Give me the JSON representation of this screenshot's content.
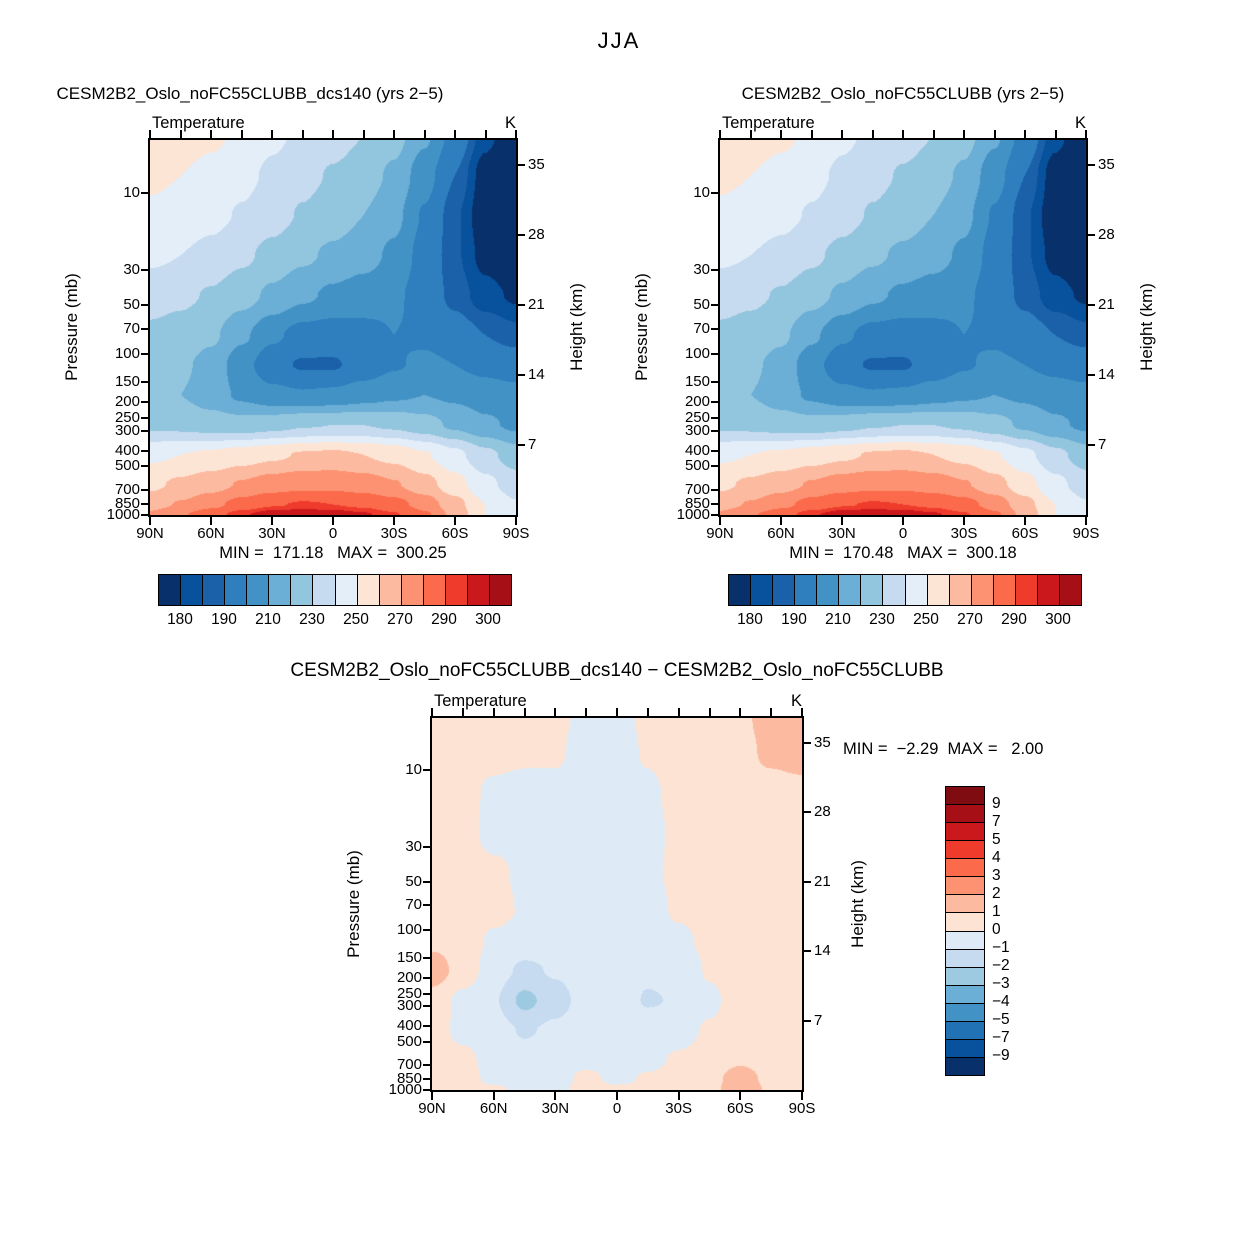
{
  "page_title": "JJA",
  "labels": {
    "field": "Temperature",
    "unit": "K",
    "pressure_axis": "Pressure (mb)",
    "height_axis": "Height (km)"
  },
  "panels": [
    {
      "title": "CESM2B2_Oslo_noFC55CLUBB_dcs140 (yrs 2−5)",
      "stats": "MIN =  171.18   MAX =  300.25",
      "colorbar_labels": [
        "180",
        "190",
        "210",
        "230",
        "250",
        "270",
        "290",
        "300"
      ]
    },
    {
      "title": "CESM2B2_Oslo_noFC55CLUBB (yrs 2−5)",
      "stats": "MIN =  170.48   MAX =  300.18",
      "colorbar_labels": [
        "180",
        "190",
        "210",
        "230",
        "250",
        "270",
        "290",
        "300"
      ]
    },
    {
      "title": "CESM2B2_Oslo_noFC55CLUBB_dcs140 − CESM2B2_Oslo_noFC55CLUBB",
      "stats": "MIN =  −2.29  MAX =   2.00",
      "colorbar_labels": [
        "9",
        "7",
        "5",
        "4",
        "3",
        "2",
        "1",
        "0",
        "−1",
        "−2",
        "−3",
        "−4",
        "−5",
        "−7",
        "−9"
      ]
    }
  ],
  "axes": {
    "pressure_ticks": [
      "10",
      "30",
      "50",
      "70",
      "100",
      "150",
      "200",
      "250",
      "300",
      "400",
      "500",
      "700",
      "850",
      "1000"
    ],
    "height_ticks": [
      "35",
      "28",
      "21",
      "14",
      "7"
    ],
    "lat_ticks": [
      "90N",
      "60N",
      "30N",
      "0",
      "30S",
      "60S",
      "90S"
    ],
    "z_top_km": 37.5,
    "scale_height_km": 7
  },
  "chart_data": {
    "type": "heatmap",
    "description": "Zonal-mean temperature (K) versus latitude and pressure for JJA; two CESM2 model runs and their difference (filled contour cross-sections).",
    "panels": [
      {
        "name": "CESM2B2_Oslo_noFC55CLUBB_dcs140 (yrs 2−5)",
        "units": "K",
        "min": 171.18,
        "max": 300.25,
        "lat_cols": [
          "90N",
          "75N",
          "60N",
          "45N",
          "30N",
          "15N",
          "0",
          "15S",
          "30S",
          "45S",
          "60S",
          "75S",
          "90S"
        ],
        "z_rows_km": [
          38,
          34,
          30,
          26,
          22,
          18,
          15,
          12,
          9,
          6,
          3,
          1,
          0
        ],
        "contour_edges": [
          180,
          185,
          190,
          200,
          210,
          220,
          230,
          240,
          250,
          260,
          270,
          280,
          290,
          295,
          300
        ],
        "band_colors": [
          "#08306b",
          "#08519c",
          "#1a61aa",
          "#2f7fbf",
          "#4292c6",
          "#6baed6",
          "#92c5de",
          "#c6dbef",
          "#e3eef9",
          "#fde5d6",
          "#fcbba1",
          "#fc9272",
          "#fb6a4a",
          "#ef3b2c",
          "#cb181d",
          "#a50f15"
        ],
        "values": [
          [
            256,
            255,
            252,
            248,
            242,
            238,
            234,
            230,
            224,
            212,
            196,
            182,
            174
          ],
          [
            252,
            250,
            247,
            243,
            238,
            233,
            229,
            225,
            218,
            204,
            190,
            177,
            171
          ],
          [
            248,
            246,
            243,
            239,
            234,
            229,
            225,
            220,
            213,
            199,
            186,
            176,
            171
          ],
          [
            242,
            240,
            237,
            232,
            227,
            222,
            218,
            214,
            208,
            196,
            186,
            178,
            174
          ],
          [
            234,
            232,
            229,
            224,
            218,
            212,
            208,
            205,
            202,
            195,
            188,
            182,
            179
          ],
          [
            228,
            226,
            222,
            212,
            202,
            196,
            195,
            197,
            200,
            198,
            194,
            190,
            187
          ],
          [
            225,
            222,
            216,
            204,
            193,
            189,
            189,
            194,
            199,
            202,
            200,
            197,
            195
          ],
          [
            222,
            220,
            215,
            208,
            203,
            201,
            202,
            205,
            208,
            210,
            208,
            205,
            203
          ],
          [
            228,
            227,
            225,
            224,
            226,
            229,
            230,
            230,
            228,
            224,
            218,
            212,
            208
          ],
          [
            248,
            250,
            252,
            255,
            258,
            261,
            262,
            260,
            257,
            251,
            243,
            233,
            225
          ],
          [
            258,
            262,
            266,
            271,
            275,
            277,
            277,
            275,
            271,
            264,
            254,
            243,
            235
          ],
          [
            266,
            271,
            277,
            284,
            289,
            291,
            290,
            288,
            284,
            276,
            264,
            250,
            241
          ],
          [
            272,
            279,
            286,
            294,
            299,
            300,
            299,
            296,
            291,
            282,
            267,
            250,
            243
          ]
        ]
      },
      {
        "name": "CESM2B2_Oslo_noFC55CLUBB (yrs 2−5)",
        "units": "K",
        "min": 170.48,
        "max": 300.18,
        "lat_cols": [
          "90N",
          "75N",
          "60N",
          "45N",
          "30N",
          "15N",
          "0",
          "15S",
          "30S",
          "45S",
          "60S",
          "75S",
          "90S"
        ],
        "z_rows_km": [
          38,
          34,
          30,
          26,
          22,
          18,
          15,
          12,
          9,
          6,
          3,
          1,
          0
        ],
        "contour_edges": [
          180,
          185,
          190,
          200,
          210,
          220,
          230,
          240,
          250,
          260,
          270,
          280,
          290,
          295,
          300
        ],
        "band_colors": [
          "#08306b",
          "#08519c",
          "#1a61aa",
          "#2f7fbf",
          "#4292c6",
          "#6baed6",
          "#92c5de",
          "#c6dbef",
          "#e3eef9",
          "#fde5d6",
          "#fcbba1",
          "#fc9272",
          "#fb6a4a",
          "#ef3b2c",
          "#cb181d",
          "#a50f15"
        ],
        "values": [
          [
            256,
            255,
            252,
            248,
            242,
            238,
            234,
            230,
            224,
            212,
            196,
            182,
            174
          ],
          [
            252,
            250,
            247,
            243,
            238,
            233,
            229,
            225,
            218,
            204,
            190,
            177,
            171
          ],
          [
            248,
            246,
            243,
            239,
            234,
            229,
            225,
            220,
            213,
            199,
            186,
            176,
            171
          ],
          [
            242,
            240,
            237,
            232,
            227,
            222,
            218,
            214,
            208,
            196,
            186,
            178,
            174
          ],
          [
            234,
            232,
            229,
            224,
            218,
            212,
            208,
            205,
            202,
            195,
            188,
            182,
            179
          ],
          [
            228,
            226,
            222,
            212,
            202,
            196,
            195,
            197,
            200,
            198,
            194,
            190,
            187
          ],
          [
            225,
            222,
            216,
            204,
            193,
            189,
            189,
            194,
            199,
            202,
            200,
            197,
            195
          ],
          [
            222,
            220,
            215,
            208,
            203,
            201,
            202,
            205,
            208,
            210,
            208,
            205,
            203
          ],
          [
            228,
            227,
            225,
            224,
            226,
            229,
            230,
            230,
            228,
            224,
            218,
            212,
            208
          ],
          [
            248,
            250,
            252,
            255,
            258,
            261,
            262,
            260,
            257,
            251,
            243,
            233,
            225
          ],
          [
            258,
            262,
            266,
            271,
            275,
            277,
            277,
            275,
            271,
            264,
            254,
            243,
            235
          ],
          [
            266,
            271,
            277,
            284,
            289,
            291,
            290,
            288,
            284,
            276,
            264,
            250,
            241
          ],
          [
            272,
            279,
            286,
            294,
            299,
            300,
            299,
            296,
            291,
            282,
            267,
            250,
            243
          ]
        ]
      },
      {
        "name": "CESM2B2_Oslo_noFC55CLUBB_dcs140 − CESM2B2_Oslo_noFC55CLUBB",
        "units": "K",
        "min": -2.29,
        "max": 2.0,
        "lat_cols": [
          "90N",
          "75N",
          "60N",
          "45N",
          "30N",
          "15N",
          "0",
          "15S",
          "30S",
          "45S",
          "60S",
          "75S",
          "90S"
        ],
        "z_rows_km": [
          38,
          34,
          30,
          26,
          22,
          18,
          15,
          12,
          9,
          6,
          3,
          1,
          0
        ],
        "contour_edges": [
          -9,
          -7,
          -5,
          -4,
          -3,
          -2,
          -1,
          0,
          1,
          2,
          3,
          4,
          5,
          7,
          9
        ],
        "band_colors": [
          "#08306b",
          "#08519c",
          "#2171b5",
          "#4292c6",
          "#6baed6",
          "#9ecae1",
          "#c6dbef",
          "#deebf7",
          "#fde3d3",
          "#fcbba1",
          "#fc9272",
          "#fb6a4a",
          "#ef3b2c",
          "#cb181d",
          "#a50f15",
          "#7f0c10"
        ],
        "values": [
          [
            0.4,
            0.4,
            0.3,
            0.3,
            0.2,
            -0.2,
            -0.3,
            0.2,
            0.4,
            0.5,
            0.8,
            1.4,
            1.6
          ],
          [
            0.4,
            0.3,
            0.3,
            0.2,
            0.1,
            -0.3,
            -0.4,
            0.1,
            0.4,
            0.5,
            0.7,
            1.2,
            1.4
          ],
          [
            0.3,
            0.3,
            -0.2,
            -0.4,
            -0.2,
            -0.3,
            -0.5,
            -0.2,
            0.3,
            0.4,
            0.5,
            0.6,
            0.7
          ],
          [
            0.4,
            0.3,
            -0.3,
            -0.5,
            -0.3,
            -0.4,
            -0.6,
            -0.3,
            0.2,
            0.4,
            0.4,
            0.5,
            0.5
          ],
          [
            0.5,
            0.4,
            0.2,
            -0.2,
            -0.4,
            -0.5,
            -0.4,
            -0.2,
            0.2,
            0.3,
            0.4,
            0.4,
            0.4
          ],
          [
            0.6,
            0.5,
            0.3,
            -0.1,
            -0.3,
            -0.4,
            -0.5,
            -0.3,
            0.1,
            0.3,
            0.3,
            0.3,
            0.3
          ],
          [
            0.8,
            0.6,
            -0.2,
            -0.5,
            -0.6,
            -0.4,
            -0.5,
            -0.4,
            -0.2,
            0.2,
            0.4,
            0.4,
            0.3
          ],
          [
            1.5,
            0.6,
            -0.6,
            -1.2,
            -0.9,
            -0.5,
            -0.6,
            -0.8,
            -0.7,
            0.1,
            0.5,
            0.5,
            0.4
          ],
          [
            0.6,
            -0.3,
            -0.9,
            -2.3,
            -1.4,
            -0.6,
            -0.4,
            -1.1,
            -0.9,
            -0.2,
            0.4,
            0.6,
            0.5
          ],
          [
            0.3,
            -0.2,
            -0.6,
            -1.1,
            -0.8,
            -0.4,
            -0.3,
            -0.4,
            -0.3,
            0.1,
            0.4,
            0.5,
            0.4
          ],
          [
            0.3,
            0.2,
            -0.3,
            -0.6,
            -0.4,
            -0.2,
            -0.3,
            -0.2,
            0.1,
            0.3,
            0.8,
            0.5,
            0.3
          ],
          [
            0.4,
            0.3,
            -0.2,
            -0.4,
            -0.3,
            0.2,
            -0.2,
            0.1,
            0.3,
            0.5,
            1.7,
            0.6,
            0.4
          ],
          [
            0.4,
            0.3,
            0.2,
            -0.3,
            -0.2,
            0.3,
            0.2,
            0.2,
            0.4,
            0.6,
            1.9,
            0.8,
            0.5
          ]
        ]
      }
    ]
  }
}
